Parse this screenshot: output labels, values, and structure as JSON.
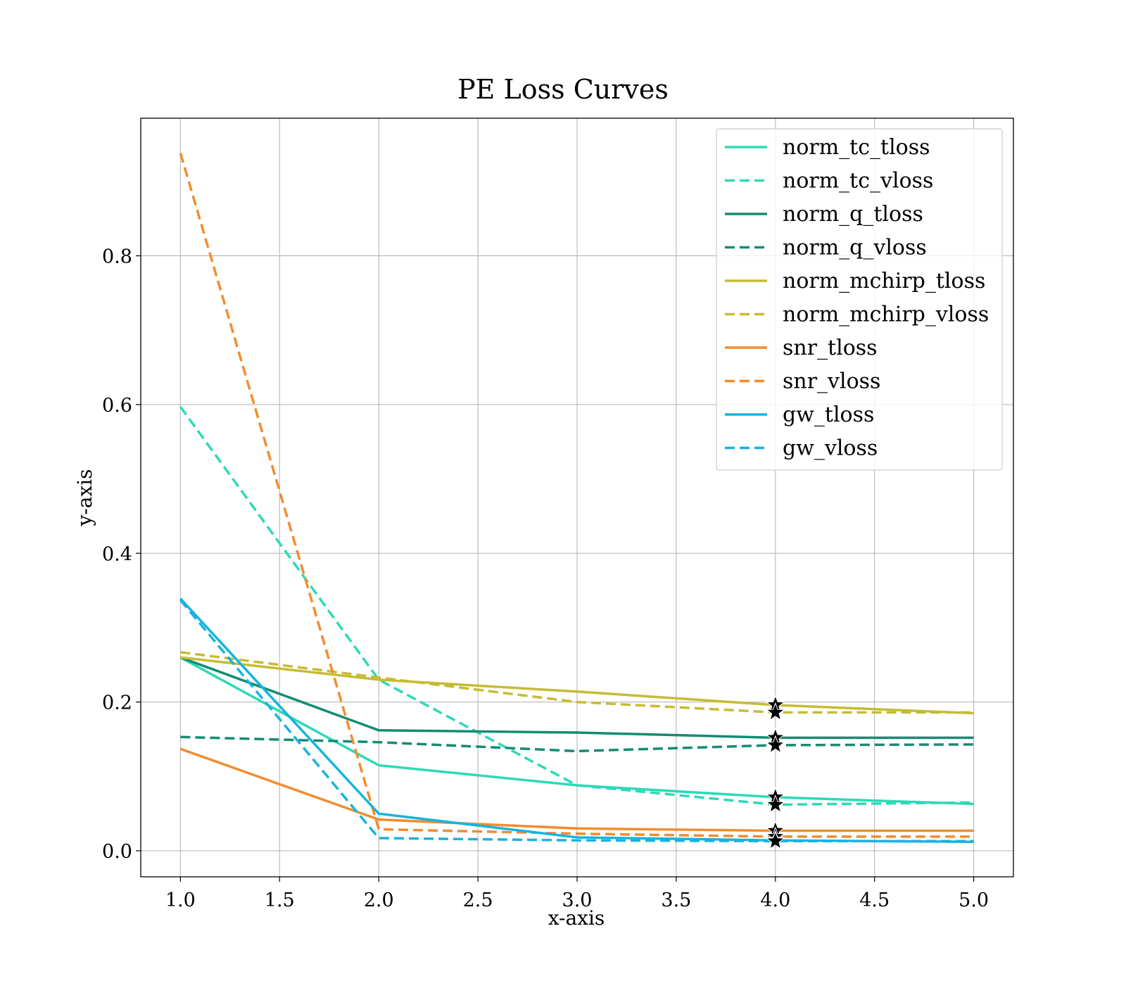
{
  "chart_data": {
    "type": "line",
    "title": "PE Loss Curves",
    "xlabel": "x-axis",
    "ylabel": "y-axis",
    "xlim": [
      0.8,
      5.2
    ],
    "ylim": [
      -0.035,
      0.985
    ],
    "grid": true,
    "legend_position": "top-right",
    "x_ticks": [
      1.0,
      1.5,
      2.0,
      2.5,
      3.0,
      3.5,
      4.0,
      4.5,
      5.0
    ],
    "x_tick_labels": [
      "1.0",
      "1.5",
      "2.0",
      "2.5",
      "3.0",
      "3.5",
      "4.0",
      "4.5",
      "5.0"
    ],
    "y_ticks": [
      0.0,
      0.2,
      0.4,
      0.6,
      0.8
    ],
    "y_tick_labels": [
      "0.0",
      "0.2",
      "0.4",
      "0.6",
      "0.8"
    ],
    "x": [
      1,
      2,
      3,
      4,
      5
    ],
    "marker_x": 4,
    "marker_symbol": "star",
    "series": [
      {
        "name": "norm_tc_tloss",
        "color": "#2ed9b8",
        "style": "solid",
        "values": [
          0.26,
          0.115,
          0.088,
          0.072,
          0.063
        ]
      },
      {
        "name": "norm_tc_vloss",
        "color": "#2ed9b8",
        "style": "dashed",
        "values": [
          0.597,
          0.23,
          0.088,
          0.062,
          0.065
        ]
      },
      {
        "name": "norm_q_tloss",
        "color": "#148c73",
        "style": "solid",
        "values": [
          0.26,
          0.162,
          0.159,
          0.152,
          0.152
        ]
      },
      {
        "name": "norm_q_vloss",
        "color": "#148c73",
        "style": "dashed",
        "values": [
          0.153,
          0.146,
          0.134,
          0.142,
          0.143
        ]
      },
      {
        "name": "norm_mchirp_tloss",
        "color": "#c6bc32",
        "style": "solid",
        "values": [
          0.26,
          0.23,
          0.214,
          0.196,
          0.185
        ]
      },
      {
        "name": "norm_mchirp_vloss",
        "color": "#c6bc32",
        "style": "dashed",
        "values": [
          0.267,
          0.233,
          0.2,
          0.186,
          0.186
        ]
      },
      {
        "name": "snr_tloss",
        "color": "#f28c2e",
        "style": "solid",
        "values": [
          0.137,
          0.042,
          0.03,
          0.027,
          0.027
        ]
      },
      {
        "name": "snr_vloss",
        "color": "#f28c2e",
        "style": "dashed",
        "values": [
          0.938,
          0.029,
          0.023,
          0.019,
          0.019
        ]
      },
      {
        "name": "gw_tloss",
        "color": "#16b4e0",
        "style": "solid",
        "values": [
          0.339,
          0.05,
          0.018,
          0.014,
          0.012
        ]
      },
      {
        "name": "gw_vloss",
        "color": "#16b4e0",
        "style": "dashed",
        "values": [
          0.337,
          0.017,
          0.014,
          0.013,
          0.013
        ]
      }
    ]
  }
}
